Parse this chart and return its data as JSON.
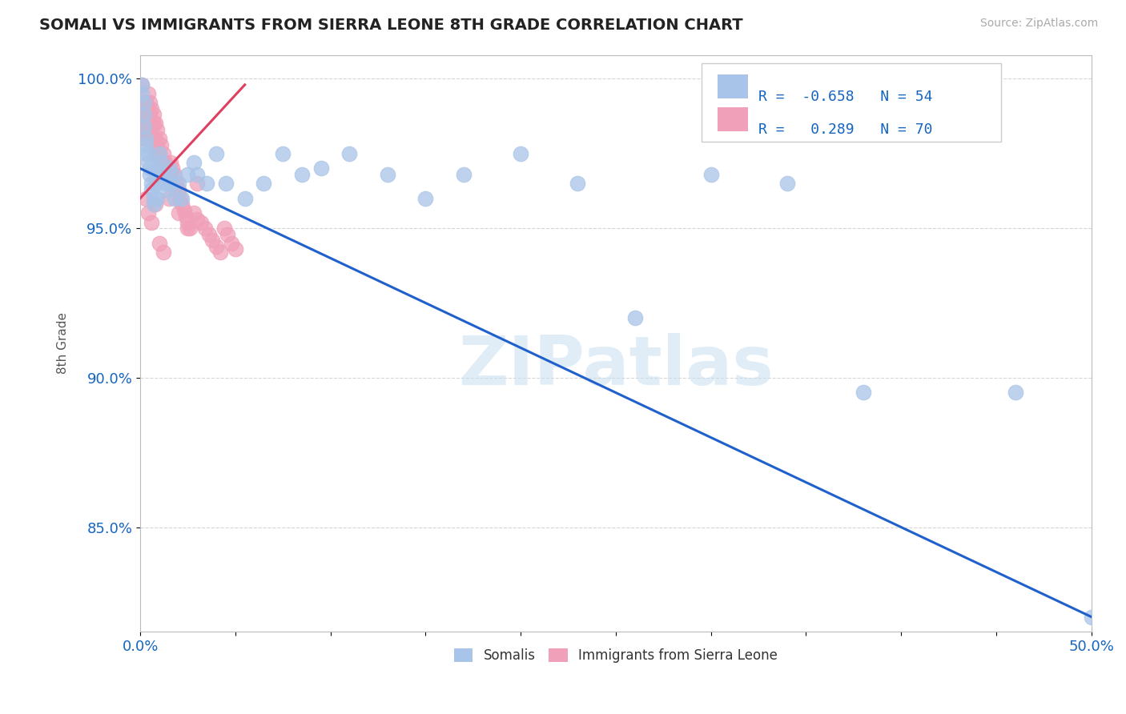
{
  "title": "SOMALI VS IMMIGRANTS FROM SIERRA LEONE 8TH GRADE CORRELATION CHART",
  "source_text": "Source: ZipAtlas.com",
  "ylabel": "8th Grade",
  "xlim": [
    0.0,
    0.5
  ],
  "ylim": [
    0.815,
    1.008
  ],
  "yticks": [
    0.85,
    0.9,
    0.95,
    1.0
  ],
  "ytick_labels": [
    "85.0%",
    "90.0%",
    "95.0%",
    "100.0%"
  ],
  "xtick_show": [
    0.0,
    0.5
  ],
  "xtick_labels": [
    "0.0%",
    "50.0%"
  ],
  "somali_R": -0.658,
  "somali_N": 54,
  "sierra_R": 0.289,
  "sierra_N": 70,
  "somali_color": "#a8c4e8",
  "sierra_color": "#f0a0b8",
  "somali_line_color": "#2060cc",
  "sierra_line_color": "#e04060",
  "watermark": "ZIPatlas",
  "background_color": "#ffffff",
  "somali_line_x0": 0.0,
  "somali_line_y0": 0.97,
  "somali_line_x1": 0.5,
  "somali_line_y1": 0.82,
  "sierra_line_x0": 0.0,
  "sierra_line_y0": 0.96,
  "sierra_line_x1": 0.055,
  "sierra_line_y1": 0.998,
  "somali_x": [
    0.001,
    0.001,
    0.002,
    0.002,
    0.002,
    0.003,
    0.003,
    0.003,
    0.004,
    0.004,
    0.005,
    0.005,
    0.006,
    0.006,
    0.007,
    0.007,
    0.008,
    0.008,
    0.009,
    0.01,
    0.01,
    0.011,
    0.012,
    0.013,
    0.014,
    0.015,
    0.016,
    0.017,
    0.018,
    0.02,
    0.022,
    0.025,
    0.028,
    0.03,
    0.035,
    0.04,
    0.045,
    0.055,
    0.065,
    0.075,
    0.085,
    0.095,
    0.11,
    0.13,
    0.15,
    0.17,
    0.2,
    0.23,
    0.26,
    0.3,
    0.34,
    0.38,
    0.46,
    0.5
  ],
  "somali_y": [
    0.998,
    0.995,
    0.992,
    0.988,
    0.984,
    0.98,
    0.978,
    0.975,
    0.975,
    0.972,
    0.97,
    0.968,
    0.965,
    0.963,
    0.96,
    0.958,
    0.97,
    0.965,
    0.96,
    0.975,
    0.968,
    0.972,
    0.968,
    0.965,
    0.963,
    0.97,
    0.965,
    0.968,
    0.96,
    0.965,
    0.96,
    0.968,
    0.972,
    0.968,
    0.965,
    0.975,
    0.965,
    0.96,
    0.965,
    0.975,
    0.968,
    0.97,
    0.975,
    0.968,
    0.96,
    0.968,
    0.975,
    0.965,
    0.92,
    0.968,
    0.965,
    0.895,
    0.895,
    0.82
  ],
  "sierra_x": [
    0.001,
    0.001,
    0.001,
    0.002,
    0.002,
    0.002,
    0.002,
    0.003,
    0.003,
    0.003,
    0.003,
    0.004,
    0.004,
    0.004,
    0.004,
    0.005,
    0.005,
    0.005,
    0.006,
    0.006,
    0.006,
    0.007,
    0.007,
    0.007,
    0.008,
    0.008,
    0.008,
    0.009,
    0.009,
    0.01,
    0.01,
    0.011,
    0.011,
    0.012,
    0.013,
    0.014,
    0.015,
    0.016,
    0.017,
    0.018,
    0.019,
    0.02,
    0.021,
    0.022,
    0.023,
    0.024,
    0.025,
    0.026,
    0.028,
    0.03,
    0.032,
    0.034,
    0.036,
    0.038,
    0.04,
    0.042,
    0.044,
    0.046,
    0.048,
    0.05,
    0.015,
    0.02,
    0.025,
    0.03,
    0.003,
    0.008,
    0.004,
    0.006,
    0.01,
    0.012
  ],
  "sierra_y": [
    0.985,
    0.98,
    0.998,
    0.992,
    0.988,
    0.985,
    0.982,
    0.992,
    0.988,
    0.985,
    0.98,
    0.995,
    0.99,
    0.985,
    0.98,
    0.992,
    0.988,
    0.984,
    0.99,
    0.985,
    0.98,
    0.988,
    0.985,
    0.98,
    0.985,
    0.98,
    0.975,
    0.983,
    0.978,
    0.98,
    0.975,
    0.978,
    0.973,
    0.975,
    0.972,
    0.97,
    0.968,
    0.972,
    0.97,
    0.968,
    0.965,
    0.963,
    0.96,
    0.958,
    0.956,
    0.954,
    0.952,
    0.95,
    0.955,
    0.953,
    0.952,
    0.95,
    0.948,
    0.946,
    0.944,
    0.942,
    0.95,
    0.948,
    0.945,
    0.943,
    0.96,
    0.955,
    0.95,
    0.965,
    0.96,
    0.958,
    0.955,
    0.952,
    0.945,
    0.942
  ]
}
